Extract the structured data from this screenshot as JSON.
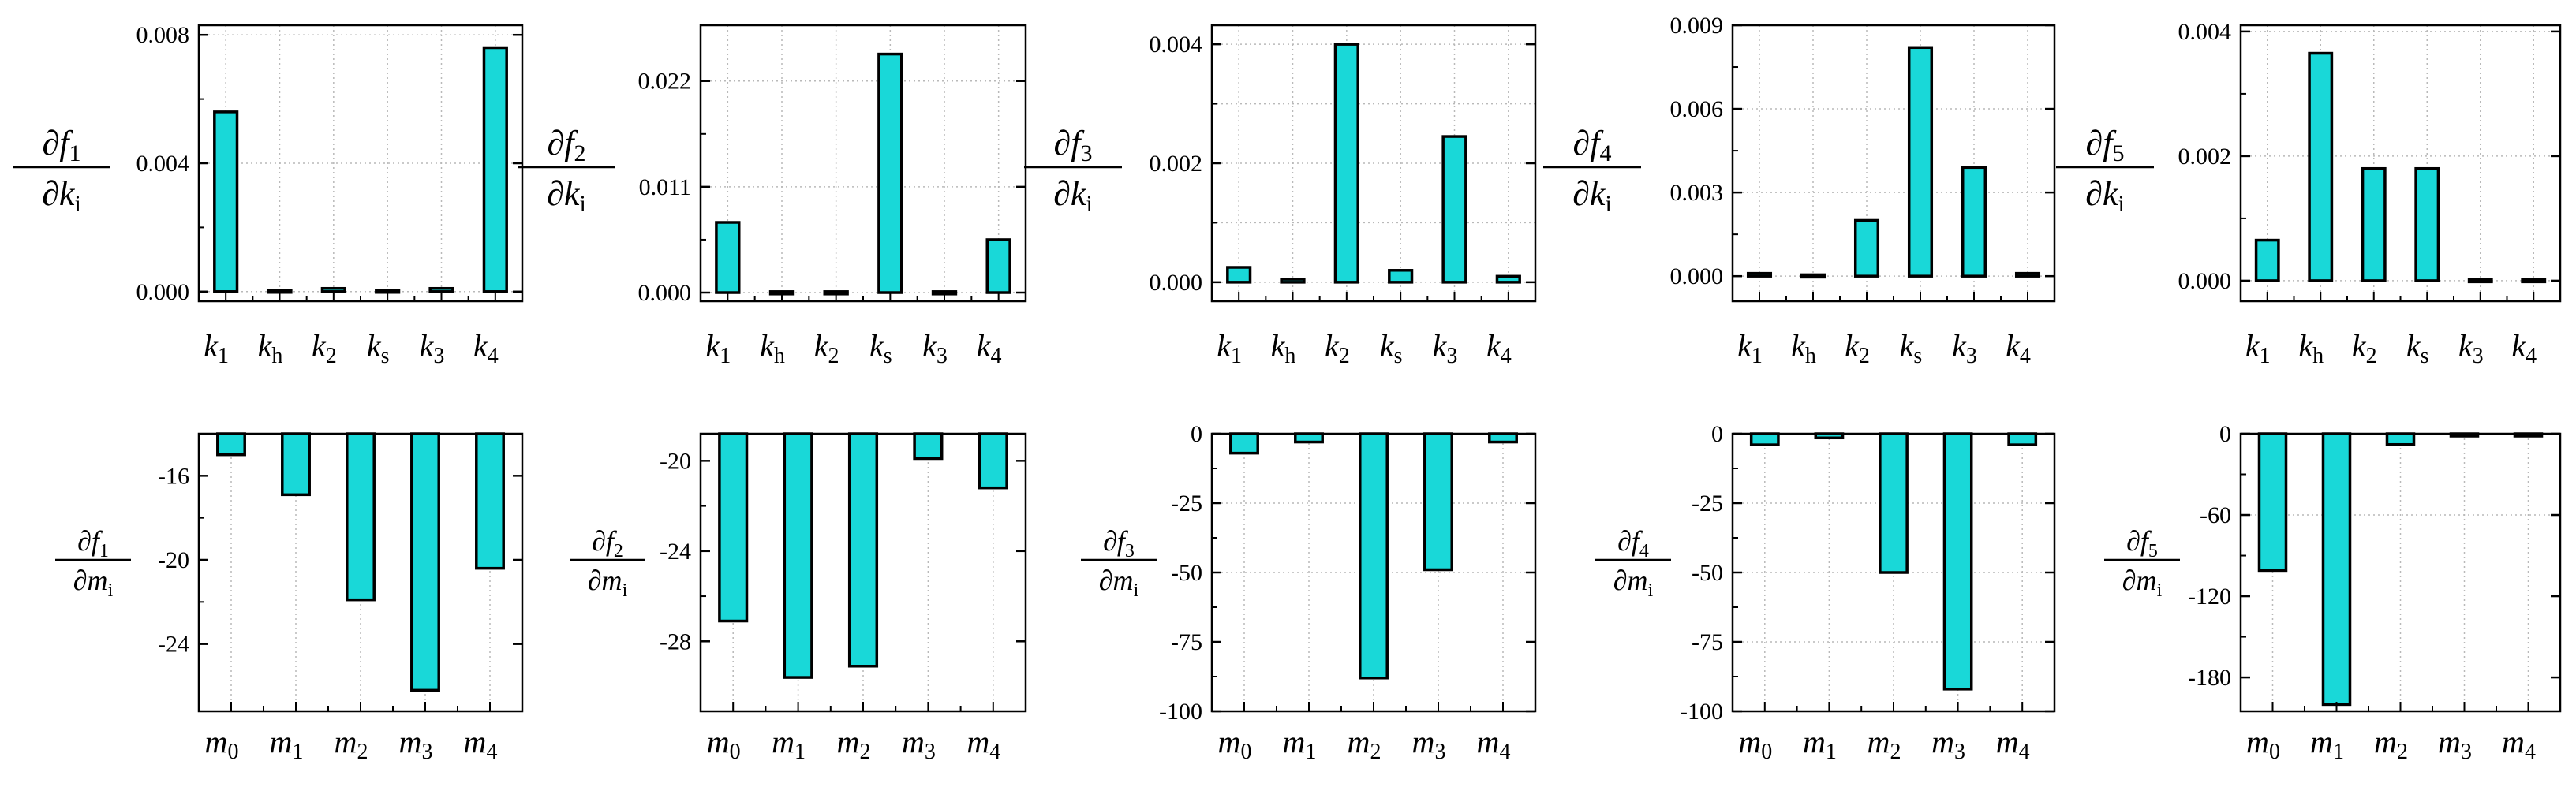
{
  "chart_data": [
    {
      "id": "f1k",
      "type": "bar",
      "ylabel": {
        "num": "∂f",
        "num_sub": "1",
        "den": "∂k",
        "den_sub": "i"
      },
      "categories": [
        {
          "base": "k",
          "sub": "1"
        },
        {
          "base": "k",
          "sub": "h"
        },
        {
          "base": "k",
          "sub": "2"
        },
        {
          "base": "k",
          "sub": "s"
        },
        {
          "base": "k",
          "sub": "3"
        },
        {
          "base": "k",
          "sub": "4"
        }
      ],
      "values": [
        0.0056,
        5e-05,
        0.0001,
        5e-05,
        0.0001,
        0.0076
      ],
      "ylim": [
        -0.0003,
        0.0083
      ],
      "yticks": [
        {
          "v": 0,
          "t": "0.000"
        },
        {
          "v": 0.004,
          "t": "0.004"
        },
        {
          "v": 0.008,
          "t": "0.008"
        }
      ],
      "ygrid": [
        0.008,
        0.004,
        0
      ]
    },
    {
      "id": "f2k",
      "type": "bar",
      "ylabel": {
        "num": "∂f",
        "num_sub": "2",
        "den": "∂k",
        "den_sub": "i"
      },
      "categories": [
        {
          "base": "k",
          "sub": "1"
        },
        {
          "base": "k",
          "sub": "h"
        },
        {
          "base": "k",
          "sub": "2"
        },
        {
          "base": "k",
          "sub": "s"
        },
        {
          "base": "k",
          "sub": "3"
        },
        {
          "base": "k",
          "sub": "4"
        }
      ],
      "values": [
        0.0073,
        0.0001,
        0.0001,
        0.0248,
        0.0001,
        0.0055
      ],
      "ylim": [
        -0.0009,
        0.0278
      ],
      "yticks": [
        {
          "v": 0,
          "t": "0.000"
        },
        {
          "v": 0.011,
          "t": "0.011"
        },
        {
          "v": 0.022,
          "t": "0.022"
        }
      ],
      "ygrid": [
        0.022,
        0.011,
        0
      ]
    },
    {
      "id": "f3k",
      "type": "bar",
      "ylabel": {
        "num": "∂f",
        "num_sub": "3",
        "den": "∂k",
        "den_sub": "i"
      },
      "categories": [
        {
          "base": "k",
          "sub": "1"
        },
        {
          "base": "k",
          "sub": "h"
        },
        {
          "base": "k",
          "sub": "2"
        },
        {
          "base": "k",
          "sub": "s"
        },
        {
          "base": "k",
          "sub": "3"
        },
        {
          "base": "k",
          "sub": "4"
        }
      ],
      "values": [
        0.00025,
        5e-05,
        0.004,
        0.0002,
        0.00245,
        0.0001
      ],
      "ylim": [
        -0.00032,
        0.00432
      ],
      "yticks": [
        {
          "v": 0,
          "t": "0.000"
        },
        {
          "v": 0.002,
          "t": "0.002"
        },
        {
          "v": 0.004,
          "t": "0.004"
        }
      ],
      "ygrid": [
        0.004,
        0.003,
        0.002,
        0.001,
        0
      ]
    },
    {
      "id": "f4k",
      "type": "bar",
      "ylabel": {
        "num": "∂f",
        "num_sub": "4",
        "den": "∂k",
        "den_sub": "i"
      },
      "categories": [
        {
          "base": "k",
          "sub": "1"
        },
        {
          "base": "k",
          "sub": "h"
        },
        {
          "base": "k",
          "sub": "2"
        },
        {
          "base": "k",
          "sub": "s"
        },
        {
          "base": "k",
          "sub": "3"
        },
        {
          "base": "k",
          "sub": "4"
        }
      ],
      "values": [
        0.0001,
        5e-05,
        0.002,
        0.0082,
        0.0039,
        0.0001
      ],
      "ylim": [
        -0.0009,
        0.009
      ],
      "yticks": [
        {
          "v": 0,
          "t": "0.000"
        },
        {
          "v": 0.003,
          "t": "0.003"
        },
        {
          "v": 0.006,
          "t": "0.006"
        },
        {
          "v": 0.009,
          "t": "0.009"
        }
      ],
      "ygrid": [
        0.009,
        0.006,
        0.003,
        0
      ]
    },
    {
      "id": "f5k",
      "type": "bar",
      "ylabel": {
        "num": "∂f",
        "num_sub": "5",
        "den": "∂k",
        "den_sub": "i"
      },
      "categories": [
        {
          "base": "k",
          "sub": "1"
        },
        {
          "base": "k",
          "sub": "h"
        },
        {
          "base": "k",
          "sub": "2"
        },
        {
          "base": "k",
          "sub": "s"
        },
        {
          "base": "k",
          "sub": "3"
        },
        {
          "base": "k",
          "sub": "4"
        }
      ],
      "values": [
        0.00065,
        0.00365,
        0.0018,
        0.0018,
        2e-05,
        2e-05
      ],
      "ylim": [
        -0.00033,
        0.0041
      ],
      "yticks": [
        {
          "v": 0,
          "t": "0.000"
        },
        {
          "v": 0.002,
          "t": "0.002"
        },
        {
          "v": 0.004,
          "t": "0.004"
        }
      ],
      "ygrid": [
        0.004,
        0.002,
        0
      ]
    },
    {
      "id": "f1m",
      "type": "bar",
      "ylabel": {
        "num": "∂f",
        "num_sub": "1",
        "den": "∂m",
        "den_sub": "i"
      },
      "categories": [
        {
          "base": "m",
          "sub": "0"
        },
        {
          "base": "m",
          "sub": "1"
        },
        {
          "base": "m",
          "sub": "2"
        },
        {
          "base": "m",
          "sub": "3"
        },
        {
          "base": "m",
          "sub": "4"
        }
      ],
      "values": [
        -15.0,
        -16.9,
        -21.9,
        -26.2,
        -20.4
      ],
      "ylim": [
        -27.2,
        -14
      ],
      "baseline": -14,
      "yticks": [
        {
          "v": -16,
          "t": "-16"
        },
        {
          "v": -20,
          "t": "-20"
        },
        {
          "v": -24,
          "t": "-24"
        }
      ],
      "ygrid": []
    },
    {
      "id": "f2m",
      "type": "bar",
      "ylabel": {
        "num": "∂f",
        "num_sub": "2",
        "den": "∂m",
        "den_sub": "i"
      },
      "categories": [
        {
          "base": "m",
          "sub": "0"
        },
        {
          "base": "m",
          "sub": "1"
        },
        {
          "base": "m",
          "sub": "2"
        },
        {
          "base": "m",
          "sub": "3"
        },
        {
          "base": "m",
          "sub": "4"
        }
      ],
      "values": [
        -27.1,
        -29.6,
        -29.1,
        -19.9,
        -21.2
      ],
      "ylim": [
        -31.1,
        -18.8
      ],
      "baseline": -18.8,
      "yticks": [
        {
          "v": -20,
          "t": "-20"
        },
        {
          "v": -24,
          "t": "-24"
        },
        {
          "v": -28,
          "t": "-28"
        }
      ],
      "ygrid": []
    },
    {
      "id": "f3m",
      "type": "bar",
      "ylabel": {
        "num": "∂f",
        "num_sub": "3",
        "den": "∂m",
        "den_sub": "i"
      },
      "categories": [
        {
          "base": "m",
          "sub": "0"
        },
        {
          "base": "m",
          "sub": "1"
        },
        {
          "base": "m",
          "sub": "2"
        },
        {
          "base": "m",
          "sub": "3"
        },
        {
          "base": "m",
          "sub": "4"
        }
      ],
      "values": [
        -7,
        -3,
        -88,
        -49,
        -3
      ],
      "ylim": [
        -100,
        0
      ],
      "baseline": 0,
      "yticks": [
        {
          "v": 0,
          "t": "0"
        },
        {
          "v": -25,
          "t": "-25"
        },
        {
          "v": -50,
          "t": "-50"
        },
        {
          "v": -75,
          "t": "-75"
        },
        {
          "v": -100,
          "t": "-100"
        }
      ],
      "ygrid": [
        0,
        -25,
        -50
      ]
    },
    {
      "id": "f4m",
      "type": "bar",
      "ylabel": {
        "num": "∂f",
        "num_sub": "4",
        "den": "∂m",
        "den_sub": "i"
      },
      "categories": [
        {
          "base": "m",
          "sub": "0"
        },
        {
          "base": "m",
          "sub": "1"
        },
        {
          "base": "m",
          "sub": "2"
        },
        {
          "base": "m",
          "sub": "3"
        },
        {
          "base": "m",
          "sub": "4"
        }
      ],
      "values": [
        -4,
        -1.5,
        -50,
        -92,
        -4
      ],
      "ylim": [
        -100,
        0
      ],
      "baseline": 0,
      "yticks": [
        {
          "v": 0,
          "t": "0"
        },
        {
          "v": -25,
          "t": "-25"
        },
        {
          "v": -50,
          "t": "-50"
        },
        {
          "v": -75,
          "t": "-75"
        },
        {
          "v": -100,
          "t": "-100"
        }
      ],
      "ygrid": [
        0,
        -25,
        -50,
        -75
      ]
    },
    {
      "id": "f5m",
      "type": "bar",
      "ylabel": {
        "num": "∂f",
        "num_sub": "5",
        "den": "∂m",
        "den_sub": "i"
      },
      "categories": [
        {
          "base": "m",
          "sub": "0"
        },
        {
          "base": "m",
          "sub": "1"
        },
        {
          "base": "m",
          "sub": "2"
        },
        {
          "base": "m",
          "sub": "3"
        },
        {
          "base": "m",
          "sub": "4"
        }
      ],
      "values": [
        -101,
        -200,
        -8,
        -1,
        -0.5
      ],
      "ylim": [
        -205,
        0
      ],
      "baseline": 0,
      "yticks": [
        {
          "v": 0,
          "t": "0"
        },
        {
          "v": -60,
          "t": "-60"
        },
        {
          "v": -120,
          "t": "-120"
        },
        {
          "v": -180,
          "t": "-180"
        }
      ],
      "ygrid": [
        0,
        -60
      ]
    }
  ],
  "colors": {
    "bar_fill": "#19D8D8",
    "bar_stroke": "#000000",
    "grid": "#b9b9b9",
    "axis": "#000000"
  }
}
